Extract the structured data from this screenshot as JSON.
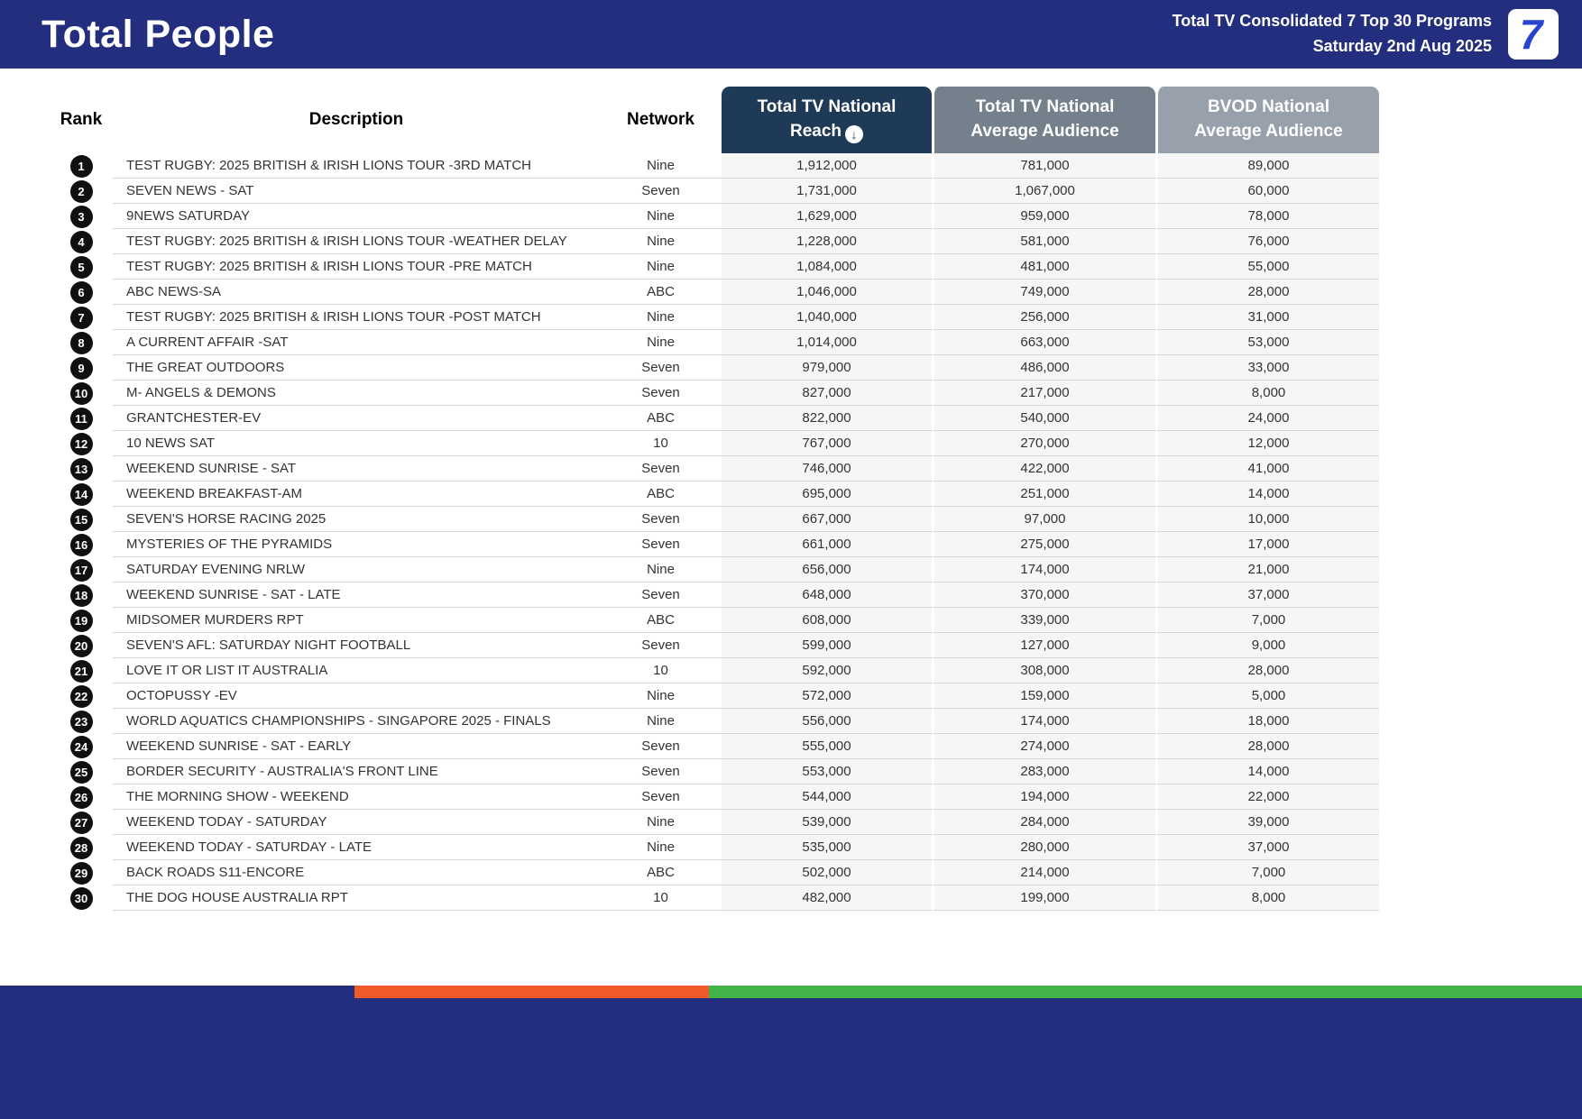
{
  "header": {
    "title": "Total People",
    "subtitle_line1": "Total TV Consolidated 7 Top 30 Programs",
    "subtitle_line2": "Saturday 2nd Aug 2025",
    "logo_text": "7"
  },
  "icons": {
    "sort_descending": "↓"
  },
  "colors": {
    "banner_navy": "#242e7f",
    "reach_header": "#1f3a57",
    "avg_header": "#75808d",
    "bvod_header": "#98a1ab",
    "footer_orange": "#ee5a29",
    "footer_green": "#44b449",
    "rank_badge": "#101010"
  },
  "table": {
    "columns": {
      "rank": "Rank",
      "description": "Description",
      "network": "Network",
      "reach_line1": "Total TV National",
      "reach_line2": "Reach",
      "avg_line1": "Total TV National",
      "avg_line2": "Average Audience",
      "bvod_line1": "BVOD National",
      "bvod_line2": "Average Audience"
    },
    "rows": [
      {
        "rank": "1",
        "description": "TEST RUGBY: 2025 BRITISH & IRISH LIONS TOUR -3RD MATCH",
        "network": "Nine",
        "reach": "1,912,000",
        "avg": "781,000",
        "bvod": "89,000"
      },
      {
        "rank": "2",
        "description": "SEVEN NEWS - SAT",
        "network": "Seven",
        "reach": "1,731,000",
        "avg": "1,067,000",
        "bvod": "60,000"
      },
      {
        "rank": "3",
        "description": "9NEWS SATURDAY",
        "network": "Nine",
        "reach": "1,629,000",
        "avg": "959,000",
        "bvod": "78,000"
      },
      {
        "rank": "4",
        "description": "TEST RUGBY: 2025 BRITISH & IRISH LIONS TOUR -WEATHER DELAY",
        "network": "Nine",
        "reach": "1,228,000",
        "avg": "581,000",
        "bvod": "76,000"
      },
      {
        "rank": "5",
        "description": "TEST RUGBY: 2025 BRITISH & IRISH LIONS TOUR -PRE MATCH",
        "network": "Nine",
        "reach": "1,084,000",
        "avg": "481,000",
        "bvod": "55,000"
      },
      {
        "rank": "6",
        "description": "ABC NEWS-SA",
        "network": "ABC",
        "reach": "1,046,000",
        "avg": "749,000",
        "bvod": "28,000"
      },
      {
        "rank": "7",
        "description": "TEST RUGBY: 2025 BRITISH & IRISH LIONS TOUR -POST MATCH",
        "network": "Nine",
        "reach": "1,040,000",
        "avg": "256,000",
        "bvod": "31,000"
      },
      {
        "rank": "8",
        "description": "A CURRENT AFFAIR -SAT",
        "network": "Nine",
        "reach": "1,014,000",
        "avg": "663,000",
        "bvod": "53,000"
      },
      {
        "rank": "9",
        "description": "THE GREAT OUTDOORS",
        "network": "Seven",
        "reach": "979,000",
        "avg": "486,000",
        "bvod": "33,000"
      },
      {
        "rank": "10",
        "description": "M- ANGELS & DEMONS",
        "network": "Seven",
        "reach": "827,000",
        "avg": "217,000",
        "bvod": "8,000"
      },
      {
        "rank": "11",
        "description": "GRANTCHESTER-EV",
        "network": "ABC",
        "reach": "822,000",
        "avg": "540,000",
        "bvod": "24,000"
      },
      {
        "rank": "12",
        "description": "10 NEWS SAT",
        "network": "10",
        "reach": "767,000",
        "avg": "270,000",
        "bvod": "12,000"
      },
      {
        "rank": "13",
        "description": "WEEKEND SUNRISE - SAT",
        "network": "Seven",
        "reach": "746,000",
        "avg": "422,000",
        "bvod": "41,000"
      },
      {
        "rank": "14",
        "description": "WEEKEND BREAKFAST-AM",
        "network": "ABC",
        "reach": "695,000",
        "avg": "251,000",
        "bvod": "14,000"
      },
      {
        "rank": "15",
        "description": "SEVEN'S HORSE RACING 2025",
        "network": "Seven",
        "reach": "667,000",
        "avg": "97,000",
        "bvod": "10,000"
      },
      {
        "rank": "16",
        "description": "MYSTERIES OF THE PYRAMIDS",
        "network": "Seven",
        "reach": "661,000",
        "avg": "275,000",
        "bvod": "17,000"
      },
      {
        "rank": "17",
        "description": "SATURDAY EVENING NRLW",
        "network": "Nine",
        "reach": "656,000",
        "avg": "174,000",
        "bvod": "21,000"
      },
      {
        "rank": "18",
        "description": "WEEKEND SUNRISE - SAT - LATE",
        "network": "Seven",
        "reach": "648,000",
        "avg": "370,000",
        "bvod": "37,000"
      },
      {
        "rank": "19",
        "description": "MIDSOMER MURDERS RPT",
        "network": "ABC",
        "reach": "608,000",
        "avg": "339,000",
        "bvod": "7,000"
      },
      {
        "rank": "20",
        "description": "SEVEN'S AFL: SATURDAY NIGHT FOOTBALL",
        "network": "Seven",
        "reach": "599,000",
        "avg": "127,000",
        "bvod": "9,000"
      },
      {
        "rank": "21",
        "description": "LOVE IT OR LIST IT AUSTRALIA",
        "network": "10",
        "reach": "592,000",
        "avg": "308,000",
        "bvod": "28,000"
      },
      {
        "rank": "22",
        "description": "OCTOPUSSY -EV",
        "network": "Nine",
        "reach": "572,000",
        "avg": "159,000",
        "bvod": "5,000"
      },
      {
        "rank": "23",
        "description": "WORLD AQUATICS CHAMPIONSHIPS - SINGAPORE 2025 - FINALS",
        "network": "Nine",
        "reach": "556,000",
        "avg": "174,000",
        "bvod": "18,000"
      },
      {
        "rank": "24",
        "description": "WEEKEND SUNRISE - SAT - EARLY",
        "network": "Seven",
        "reach": "555,000",
        "avg": "274,000",
        "bvod": "28,000"
      },
      {
        "rank": "25",
        "description": "BORDER SECURITY - AUSTRALIA'S FRONT LINE",
        "network": "Seven",
        "reach": "553,000",
        "avg": "283,000",
        "bvod": "14,000"
      },
      {
        "rank": "26",
        "description": "THE MORNING SHOW - WEEKEND",
        "network": "Seven",
        "reach": "544,000",
        "avg": "194,000",
        "bvod": "22,000"
      },
      {
        "rank": "27",
        "description": "WEEKEND TODAY - SATURDAY",
        "network": "Nine",
        "reach": "539,000",
        "avg": "284,000",
        "bvod": "39,000"
      },
      {
        "rank": "28",
        "description": "WEEKEND TODAY - SATURDAY - LATE",
        "network": "Nine",
        "reach": "535,000",
        "avg": "280,000",
        "bvod": "37,000"
      },
      {
        "rank": "29",
        "description": "BACK ROADS S11-ENCORE",
        "network": "ABC",
        "reach": "502,000",
        "avg": "214,000",
        "bvod": "7,000"
      },
      {
        "rank": "30",
        "description": "THE DOG HOUSE AUSTRALIA RPT",
        "network": "10",
        "reach": "482,000",
        "avg": "199,000",
        "bvod": "8,000"
      }
    ]
  }
}
